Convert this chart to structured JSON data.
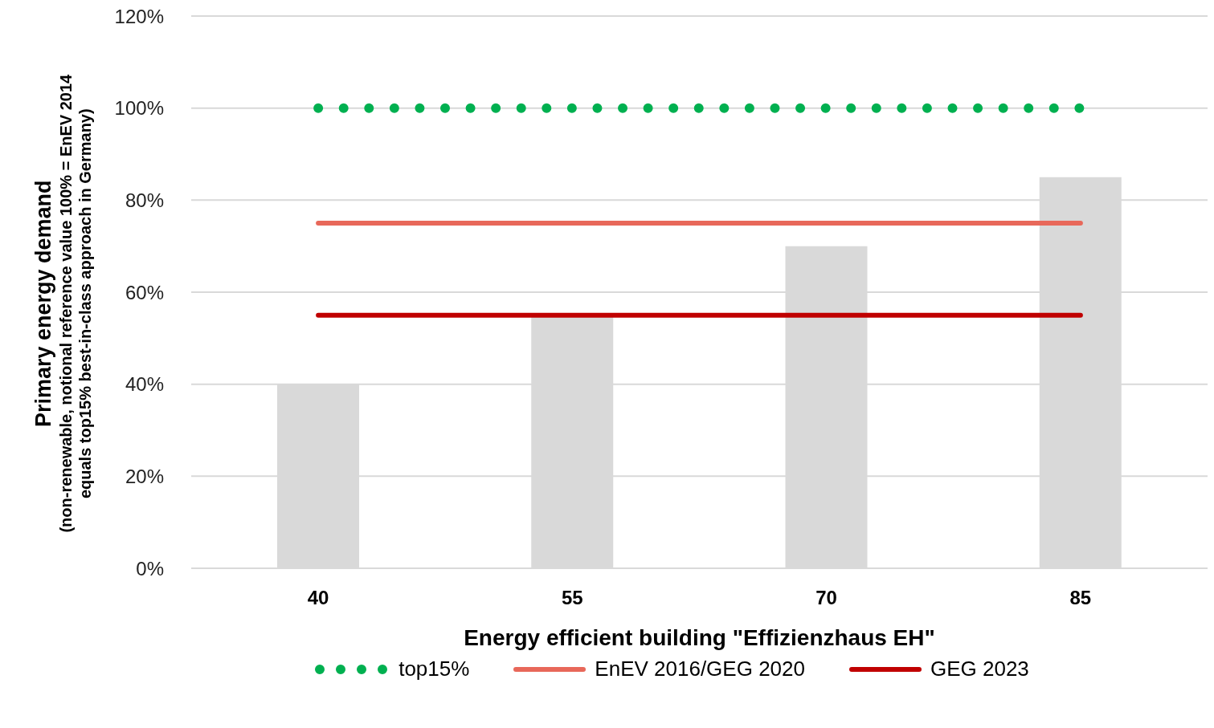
{
  "chart_data": {
    "type": "bar",
    "xlabel": "Energy efficient building \"Effizienzhaus EH\"",
    "ylabel": "Primary energy demand\n(non-renewable, notional reference value 100% = EnEV 2014 equals top15% best-in-class approach in Germany)",
    "categories": [
      "40",
      "55",
      "70",
      "85"
    ],
    "series": [
      {
        "type": "bar",
        "color": "#d9d9d9",
        "values": [
          40,
          55,
          70,
          85
        ]
      },
      {
        "type": "line",
        "name": "top15%",
        "color": "#00b050",
        "line_style": "dotted",
        "values": [
          100,
          100,
          100,
          100
        ]
      },
      {
        "type": "line",
        "name": "EnEV 2016/GEG 2020",
        "color": "#e8685a",
        "line_style": "solid",
        "values": [
          75,
          75,
          75,
          75
        ]
      },
      {
        "type": "line",
        "name": "GEG 2023",
        "color": "#c00000",
        "line_style": "solid",
        "values": [
          55,
          55,
          55,
          55
        ]
      }
    ],
    "ylim": [
      0,
      120
    ],
    "yticks": [
      {
        "value": 0,
        "label": "0%"
      },
      {
        "value": 20,
        "label": "20%"
      },
      {
        "value": 40,
        "label": "40%"
      },
      {
        "value": 60,
        "label": "60%"
      },
      {
        "value": 80,
        "label": "80%"
      },
      {
        "value": 100,
        "label": "100%"
      },
      {
        "value": 120,
        "label": "120%"
      }
    ],
    "grid": "y",
    "legend": "bottom",
    "marker": "none"
  }
}
